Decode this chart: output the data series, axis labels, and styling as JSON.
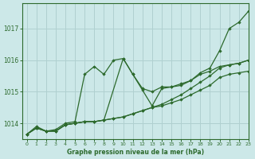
{
  "bg_color": "#cce8e8",
  "grid_color": "#b0d0d0",
  "line_color": "#2d6a2d",
  "xlabel": "Graphe pression niveau de la mer (hPa)",
  "xlim": [
    -0.5,
    23
  ],
  "ylim": [
    1013.5,
    1017.8
  ],
  "yticks": [
    1014,
    1015,
    1016,
    1017
  ],
  "xticks": [
    0,
    1,
    2,
    3,
    4,
    5,
    6,
    7,
    8,
    9,
    10,
    11,
    12,
    13,
    14,
    15,
    16,
    17,
    18,
    19,
    20,
    21,
    22,
    23
  ],
  "series": [
    {
      "x": [
        0,
        1,
        2,
        3,
        4,
        5,
        6,
        7,
        8,
        9,
        10,
        11,
        12,
        13,
        14,
        15,
        16,
        17,
        18,
        19,
        20,
        21,
        22,
        23
      ],
      "y": [
        1013.65,
        1013.9,
        1013.75,
        1013.8,
        1014.0,
        1014.05,
        1015.55,
        1015.8,
        1015.55,
        1016.0,
        1016.05,
        1015.55,
        1015.1,
        1015.0,
        1015.15,
        1015.15,
        1015.2,
        1015.35,
        1015.6,
        1015.75,
        1016.3,
        1017.0,
        1017.2,
        1017.55
      ]
    },
    {
      "x": [
        0,
        1,
        2,
        3,
        4,
        5,
        6,
        7,
        8,
        10,
        11,
        12,
        13,
        14,
        15,
        16,
        17,
        18,
        19,
        20,
        21,
        22,
        23
      ],
      "y": [
        1013.65,
        1013.85,
        1013.75,
        1013.75,
        1013.95,
        1014.0,
        1014.05,
        1014.05,
        1014.1,
        1016.05,
        1015.55,
        1015.05,
        1014.55,
        1015.1,
        1015.15,
        1015.25,
        1015.35,
        1015.55,
        1015.65,
        1015.8,
        1015.85,
        1015.9,
        1016.0
      ]
    },
    {
      "x": [
        0,
        1,
        2,
        3,
        4,
        5,
        6,
        7,
        8,
        9,
        10,
        11,
        12,
        13,
        14,
        15,
        16,
        17,
        18,
        19,
        20,
        21,
        22,
        23
      ],
      "y": [
        1013.65,
        1013.85,
        1013.75,
        1013.75,
        1013.95,
        1014.0,
        1014.05,
        1014.05,
        1014.1,
        1014.15,
        1014.2,
        1014.3,
        1014.4,
        1014.5,
        1014.6,
        1014.75,
        1014.9,
        1015.1,
        1015.3,
        1015.5,
        1015.75,
        1015.85,
        1015.9,
        1016.0
      ]
    },
    {
      "x": [
        0,
        1,
        2,
        3,
        4,
        5,
        6,
        7,
        8,
        9,
        10,
        11,
        12,
        13,
        14,
        15,
        16,
        17,
        18,
        19,
        20,
        21,
        22,
        23
      ],
      "y": [
        1013.65,
        1013.85,
        1013.75,
        1013.75,
        1013.95,
        1014.0,
        1014.05,
        1014.05,
        1014.1,
        1014.15,
        1014.2,
        1014.3,
        1014.4,
        1014.5,
        1014.55,
        1014.65,
        1014.75,
        1014.9,
        1015.05,
        1015.2,
        1015.45,
        1015.55,
        1015.6,
        1015.65
      ]
    }
  ]
}
